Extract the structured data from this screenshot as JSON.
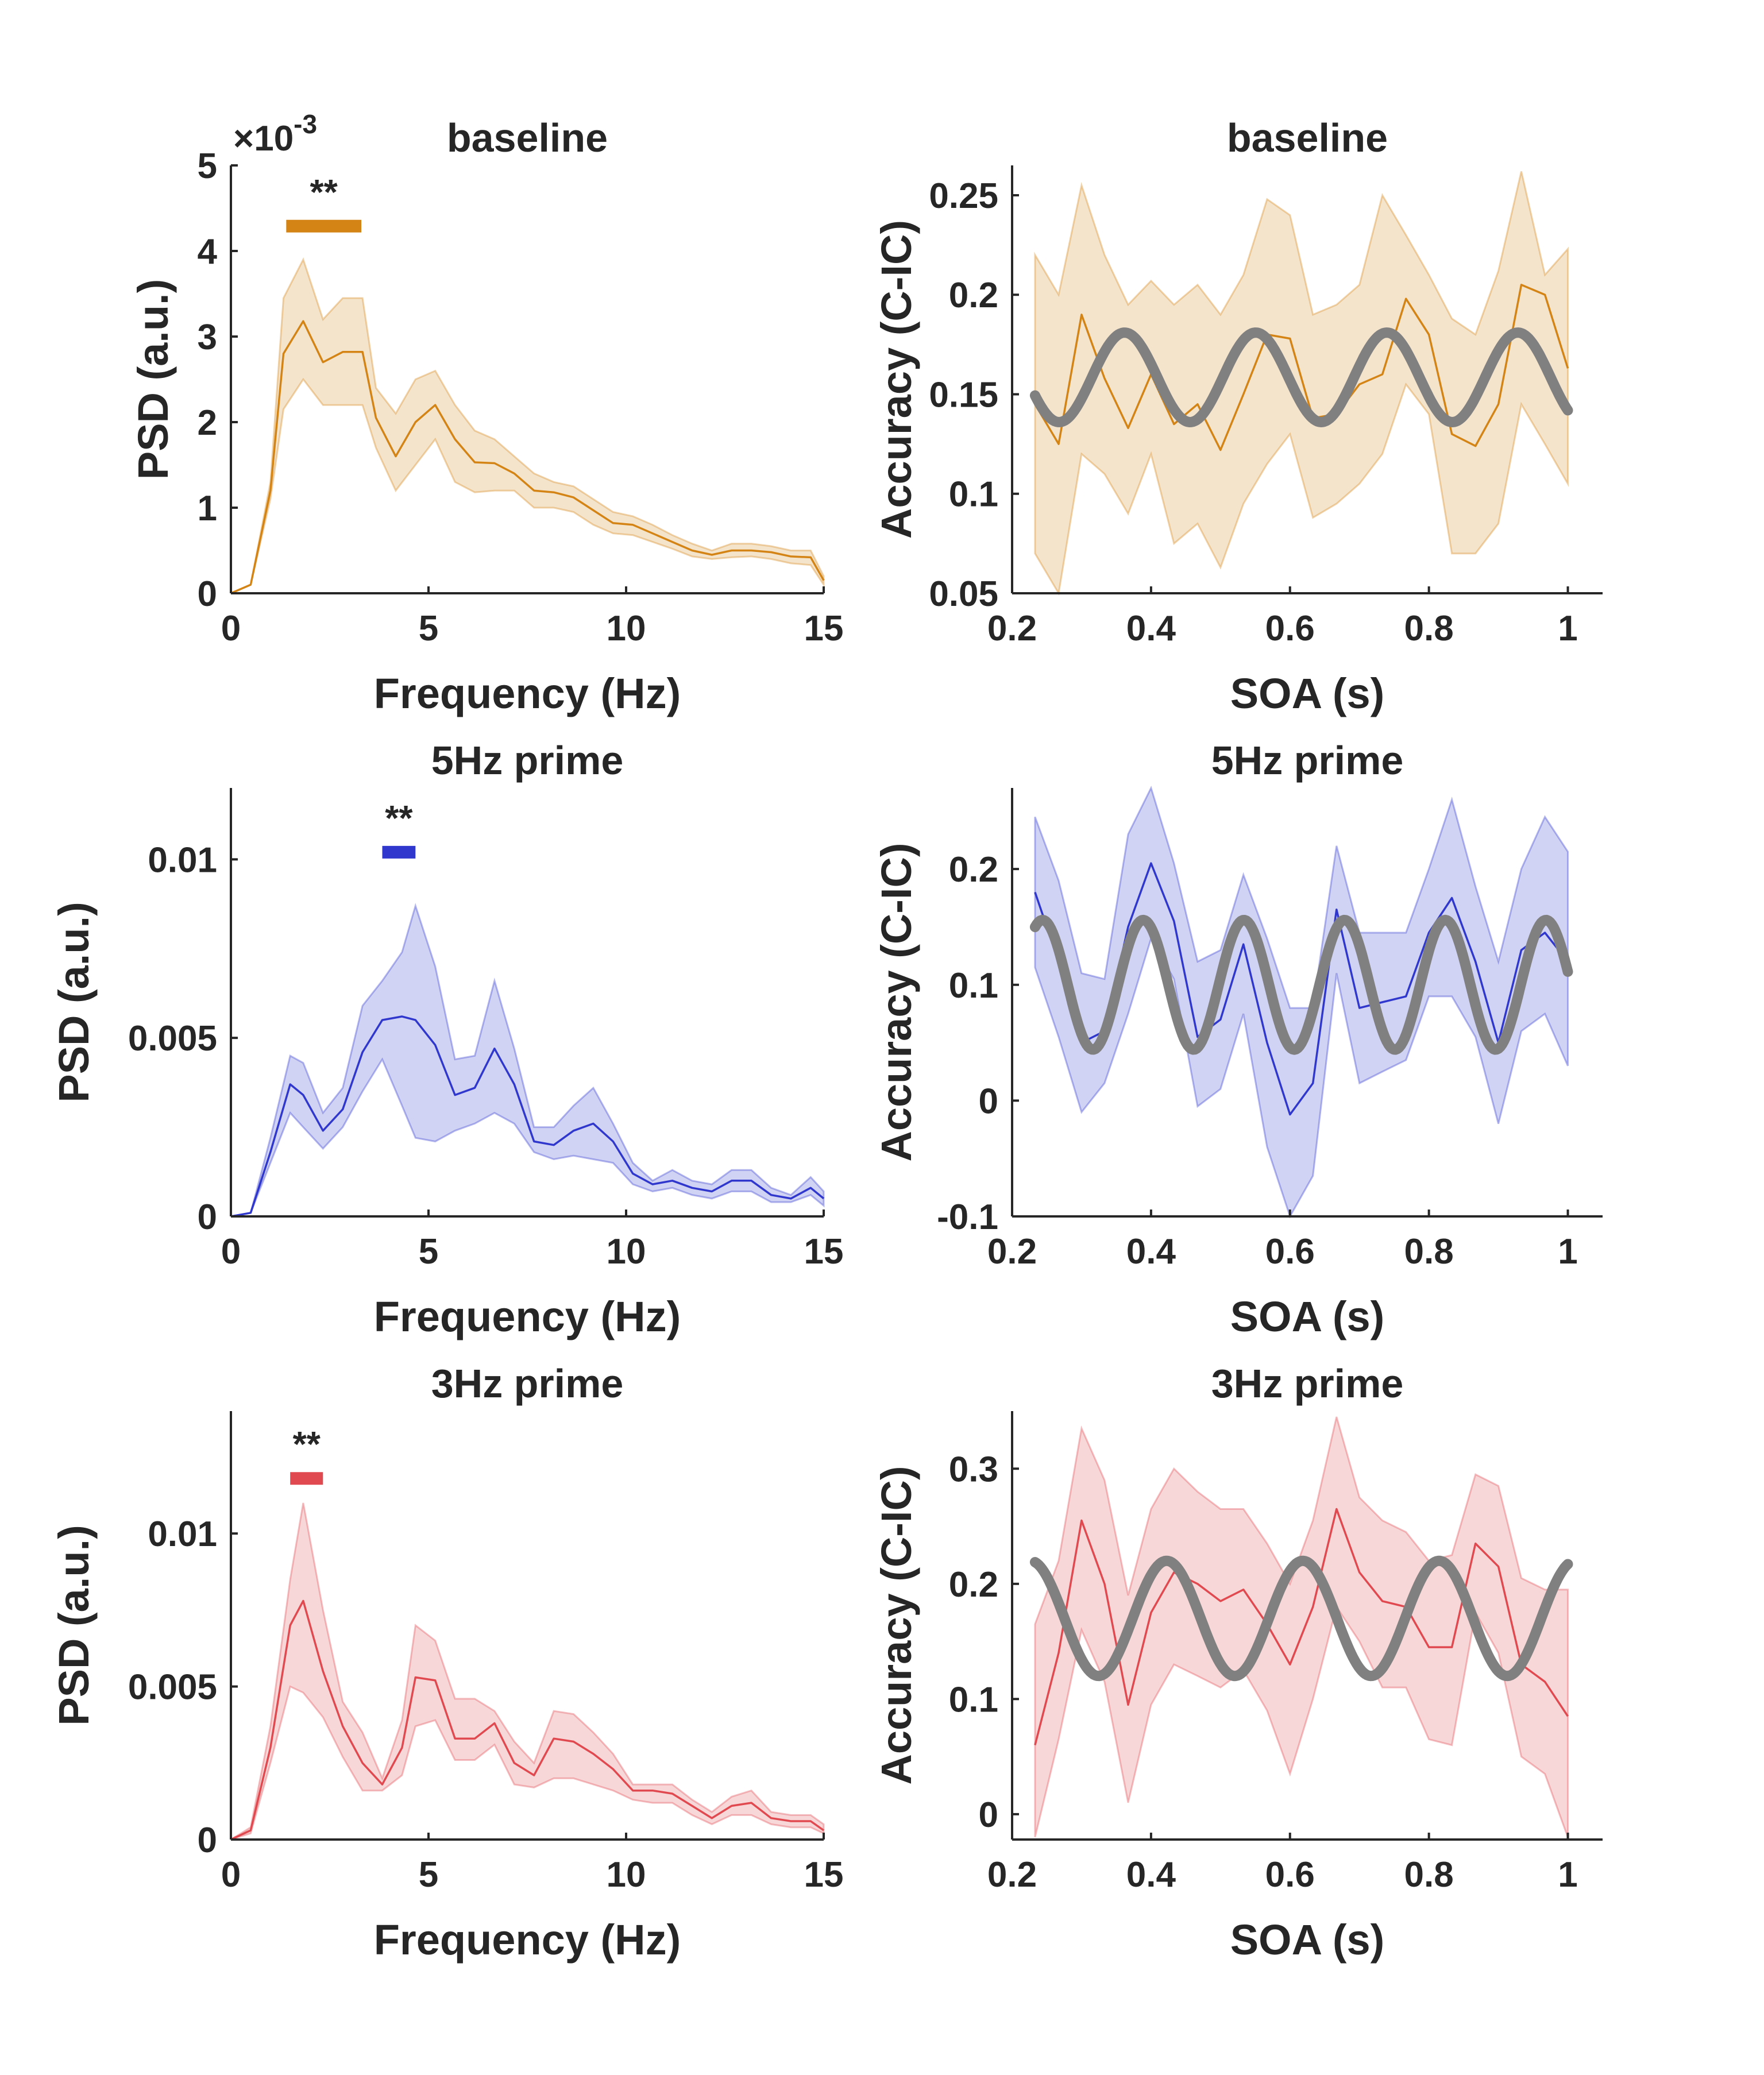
{
  "colors": {
    "baseline": "#D38415",
    "prime5": "#2F37CC",
    "prime3": "#E0494F",
    "fit": "#808080",
    "axis": "#262626"
  },
  "chart_data": [
    {
      "id": "psd-baseline",
      "type": "line",
      "title": "baseline",
      "xlabel": "Frequency (Hz)",
      "ylabel": "PSD (a.u.)",
      "exponent_label": "×10",
      "exponent_power": "-3",
      "xlim": [
        0,
        15
      ],
      "ylim": [
        0,
        0.005
      ],
      "xticks": [
        0,
        5,
        10,
        15
      ],
      "xticklabels": [
        "0",
        "5",
        "10",
        "15"
      ],
      "yticks": [
        0,
        0.001,
        0.002,
        0.003,
        0.004,
        0.005
      ],
      "yticklabels": [
        "0",
        "1",
        "2",
        "3",
        "4",
        "5"
      ],
      "color_key": "baseline",
      "series": [
        {
          "x": [
            0,
            0.5,
            1,
            1.33,
            1.83,
            2.33,
            2.83,
            3.33,
            3.67,
            4.17,
            4.67,
            5.17,
            5.67,
            6.17,
            6.67,
            7.17,
            7.67,
            8.17,
            8.67,
            9.17,
            9.67,
            10.17,
            10.67,
            11.17,
            11.67,
            12.17,
            12.67,
            13.17,
            13.67,
            14.17,
            14.67,
            15
          ],
          "mean": [
            0,
            0.0001,
            0.0012,
            0.0028,
            0.00318,
            0.0027,
            0.00282,
            0.00282,
            0.00205,
            0.0016,
            0.002,
            0.0022,
            0.0018,
            0.00153,
            0.00152,
            0.0014,
            0.0012,
            0.00118,
            0.00112,
            0.00097,
            0.00082,
            0.0008,
            0.0007,
            0.0006,
            0.0005,
            0.00045,
            0.0005,
            0.0005,
            0.00048,
            0.00043,
            0.00042,
            0.00015
          ],
          "upper": [
            0,
            0.0001,
            0.0013,
            0.00345,
            0.0039,
            0.0032,
            0.00345,
            0.00345,
            0.0024,
            0.0021,
            0.0025,
            0.0026,
            0.0022,
            0.0019,
            0.0018,
            0.0016,
            0.0014,
            0.0013,
            0.00125,
            0.0011,
            0.00095,
            0.0009,
            0.0008,
            0.00068,
            0.00058,
            0.0005,
            0.00058,
            0.00058,
            0.00055,
            0.0005,
            0.0005,
            0.0002
          ],
          "lower": [
            0,
            0.0001,
            0.0011,
            0.00215,
            0.0025,
            0.0022,
            0.0022,
            0.0022,
            0.0017,
            0.0012,
            0.0015,
            0.0018,
            0.0013,
            0.00118,
            0.0012,
            0.0012,
            0.001,
            0.001,
            0.00095,
            0.0008,
            0.0007,
            0.00068,
            0.0006,
            0.00052,
            0.00043,
            0.0004,
            0.00042,
            0.00043,
            0.0004,
            0.00035,
            0.00033,
            0.0001
          ]
        }
      ],
      "significance": {
        "label": "**",
        "x_start": 1.4,
        "x_end": 3.3,
        "y": 0.00429
      }
    },
    {
      "id": "acc-baseline",
      "type": "line",
      "title": "baseline",
      "xlabel": "SOA (s)",
      "ylabel": "Accuracy (C-IC)",
      "xlim": [
        0.2,
        1.05
      ],
      "ylim": [
        0.05,
        0.265
      ],
      "xticks": [
        0.2,
        0.4,
        0.6,
        0.8,
        1
      ],
      "xticklabels": [
        "0.2",
        "0.4",
        "0.6",
        "0.8",
        "1"
      ],
      "yticks": [
        0.05,
        0.1,
        0.15,
        0.2,
        0.25
      ],
      "yticklabels": [
        "0.05",
        "0.1",
        "0.15",
        "0.2",
        "0.25"
      ],
      "color_key": "baseline",
      "series": [
        {
          "x": [
            0.233,
            0.267,
            0.3,
            0.333,
            0.367,
            0.4,
            0.433,
            0.467,
            0.5,
            0.533,
            0.567,
            0.6,
            0.633,
            0.667,
            0.7,
            0.733,
            0.767,
            0.8,
            0.833,
            0.867,
            0.9,
            0.933,
            0.967,
            1
          ],
          "mean": [
            0.145,
            0.125,
            0.19,
            0.158,
            0.133,
            0.16,
            0.135,
            0.145,
            0.122,
            0.15,
            0.18,
            0.178,
            0.138,
            0.14,
            0.155,
            0.16,
            0.198,
            0.18,
            0.13,
            0.124,
            0.145,
            0.205,
            0.2,
            0.163
          ],
          "upper": [
            0.22,
            0.2,
            0.255,
            0.22,
            0.195,
            0.207,
            0.195,
            0.205,
            0.19,
            0.21,
            0.248,
            0.24,
            0.19,
            0.195,
            0.205,
            0.25,
            0.23,
            0.21,
            0.188,
            0.18,
            0.212,
            0.262,
            0.21,
            0.223
          ],
          "lower": [
            0.07,
            0.05,
            0.12,
            0.11,
            0.09,
            0.12,
            0.075,
            0.085,
            0.063,
            0.095,
            0.115,
            0.13,
            0.088,
            0.095,
            0.105,
            0.12,
            0.155,
            0.14,
            0.07,
            0.07,
            0.085,
            0.145,
            0.125,
            0.105
          ]
        }
      ],
      "fit": {
        "frequency_hz": 5.3,
        "mean": 0.1585,
        "amplitude": 0.0225,
        "phase_rad": -4.2,
        "x_start": 0.233,
        "x_end": 1
      }
    },
    {
      "id": "psd-5hz",
      "type": "line",
      "title": "5Hz prime",
      "xlabel": "Frequency (Hz)",
      "ylabel": "PSD (a.u.)",
      "xlim": [
        0,
        15
      ],
      "ylim": [
        0,
        0.012
      ],
      "xticks": [
        0,
        5,
        10,
        15
      ],
      "xticklabels": [
        "0",
        "5",
        "10",
        "15"
      ],
      "yticks": [
        0,
        0.005,
        0.01
      ],
      "yticklabels": [
        "0",
        "0.005",
        "0.01"
      ],
      "color_key": "prime5",
      "series": [
        {
          "x": [
            0,
            0.5,
            1,
            1.5,
            1.83,
            2.33,
            2.83,
            3.33,
            3.83,
            4.33,
            4.67,
            5.17,
            5.67,
            6.17,
            6.67,
            7.17,
            7.67,
            8.17,
            8.67,
            9.17,
            9.67,
            10.17,
            10.67,
            11.17,
            11.67,
            12.17,
            12.67,
            13.17,
            13.67,
            14.17,
            14.67,
            15
          ],
          "mean": [
            0,
            0.0001,
            0.0018,
            0.0037,
            0.0034,
            0.0024,
            0.003,
            0.0046,
            0.0055,
            0.0056,
            0.0055,
            0.0048,
            0.0034,
            0.0036,
            0.0047,
            0.0037,
            0.0021,
            0.002,
            0.0024,
            0.0026,
            0.0021,
            0.0012,
            0.0009,
            0.001,
            0.0008,
            0.0007,
            0.001,
            0.001,
            0.0006,
            0.0005,
            0.0008,
            0.0005
          ],
          "upper": [
            0,
            0.0001,
            0.0022,
            0.0045,
            0.0043,
            0.0029,
            0.0036,
            0.0059,
            0.0066,
            0.0074,
            0.0087,
            0.007,
            0.0044,
            0.0045,
            0.0066,
            0.0047,
            0.0025,
            0.0025,
            0.0031,
            0.0036,
            0.0026,
            0.0015,
            0.001,
            0.0013,
            0.001,
            0.0009,
            0.0013,
            0.0013,
            0.0008,
            0.0006,
            0.0011,
            0.0007
          ],
          "lower": [
            0,
            0.0001,
            0.0015,
            0.0029,
            0.0025,
            0.0019,
            0.0025,
            0.0035,
            0.0044,
            0.0031,
            0.0022,
            0.0021,
            0.0024,
            0.0026,
            0.0029,
            0.0026,
            0.0018,
            0.0016,
            0.0017,
            0.0016,
            0.0015,
            0.0009,
            0.0007,
            0.0008,
            0.0006,
            0.0005,
            0.0007,
            0.0007,
            0.0004,
            0.0004,
            0.0006,
            0.0003
          ]
        }
      ],
      "significance": {
        "label": "**",
        "x_start": 3.83,
        "x_end": 4.67,
        "y": 0.0102
      }
    },
    {
      "id": "acc-5hz",
      "type": "line",
      "title": "5Hz prime",
      "xlabel": "SOA (s)",
      "ylabel": "Accuracy (C-IC)",
      "xlim": [
        0.2,
        1.05
      ],
      "ylim": [
        -0.1,
        0.27
      ],
      "xticks": [
        0.2,
        0.4,
        0.6,
        0.8,
        1
      ],
      "xticklabels": [
        "0.2",
        "0.4",
        "0.6",
        "0.8",
        "1"
      ],
      "yticks": [
        -0.1,
        0,
        0.1,
        0.2
      ],
      "yticklabels": [
        "-0.1",
        "0",
        "0.1",
        "0.2"
      ],
      "color_key": "prime5",
      "series": [
        {
          "x": [
            0.233,
            0.267,
            0.3,
            0.333,
            0.367,
            0.4,
            0.433,
            0.467,
            0.5,
            0.533,
            0.567,
            0.6,
            0.633,
            0.667,
            0.7,
            0.733,
            0.767,
            0.8,
            0.833,
            0.867,
            0.9,
            0.933,
            0.967,
            1
          ],
          "mean": [
            0.18,
            0.12,
            0.05,
            0.06,
            0.15,
            0.205,
            0.155,
            0.055,
            0.07,
            0.135,
            0.05,
            -0.012,
            0.015,
            0.165,
            0.08,
            0.085,
            0.09,
            0.145,
            0.175,
            0.12,
            0.05,
            0.13,
            0.145,
            0.12
          ],
          "upper": [
            0.245,
            0.19,
            0.11,
            0.105,
            0.23,
            0.27,
            0.205,
            0.12,
            0.13,
            0.195,
            0.14,
            0.08,
            0.08,
            0.22,
            0.145,
            0.145,
            0.145,
            0.2,
            0.26,
            0.185,
            0.12,
            0.2,
            0.245,
            0.215
          ],
          "lower": [
            0.115,
            0.055,
            -0.01,
            0.015,
            0.075,
            0.14,
            0.105,
            -0.005,
            0.01,
            0.075,
            -0.04,
            -0.1,
            -0.065,
            0.11,
            0.015,
            0.025,
            0.035,
            0.09,
            0.09,
            0.055,
            -0.02,
            0.06,
            0.075,
            0.03
          ]
        }
      ],
      "fit": {
        "frequency_hz": 6.9,
        "mean": 0.1,
        "amplitude": 0.056,
        "phase_rad": -9.0,
        "x_start": 0.233,
        "x_end": 1
      }
    },
    {
      "id": "psd-3hz",
      "type": "line",
      "title": "3Hz prime",
      "xlabel": "Frequency (Hz)",
      "ylabel": "PSD (a.u.)",
      "xlim": [
        0,
        15
      ],
      "ylim": [
        0,
        0.014
      ],
      "xticks": [
        0,
        5,
        10,
        15
      ],
      "xticklabels": [
        "0",
        "5",
        "10",
        "15"
      ],
      "yticks": [
        0,
        0.005,
        0.01
      ],
      "yticklabels": [
        "0",
        "0.005",
        "0.01"
      ],
      "color_key": "prime3",
      "series": [
        {
          "x": [
            0,
            0.5,
            1,
            1.5,
            1.83,
            2.33,
            2.83,
            3.33,
            3.83,
            4.33,
            4.67,
            5.17,
            5.67,
            6.17,
            6.67,
            7.17,
            7.67,
            8.17,
            8.67,
            9.17,
            9.67,
            10.17,
            10.67,
            11.17,
            11.67,
            12.17,
            12.67,
            13.17,
            13.67,
            14.17,
            14.67,
            15
          ],
          "mean": [
            0,
            0.0003,
            0.003,
            0.007,
            0.0078,
            0.0055,
            0.0037,
            0.0025,
            0.0018,
            0.003,
            0.0053,
            0.0052,
            0.0033,
            0.0033,
            0.0038,
            0.0025,
            0.0021,
            0.0033,
            0.0032,
            0.0028,
            0.0023,
            0.0016,
            0.0016,
            0.0015,
            0.0011,
            0.0007,
            0.0011,
            0.0012,
            0.0007,
            0.0006,
            0.0006,
            0.0003
          ],
          "upper": [
            0,
            0.0004,
            0.0037,
            0.0085,
            0.011,
            0.0075,
            0.0045,
            0.0035,
            0.002,
            0.0039,
            0.007,
            0.0065,
            0.0046,
            0.0046,
            0.0042,
            0.0032,
            0.0025,
            0.0042,
            0.0041,
            0.0035,
            0.0028,
            0.0018,
            0.0018,
            0.0018,
            0.0013,
            0.0009,
            0.0014,
            0.0016,
            0.0009,
            0.0008,
            0.0008,
            0.0005
          ],
          "lower": [
            0,
            0.0002,
            0.0025,
            0.005,
            0.0048,
            0.004,
            0.0027,
            0.0016,
            0.0016,
            0.0021,
            0.0037,
            0.0039,
            0.0026,
            0.0026,
            0.0031,
            0.0018,
            0.0017,
            0.002,
            0.002,
            0.0018,
            0.0016,
            0.0013,
            0.0012,
            0.0012,
            0.0008,
            0.0005,
            0.0008,
            0.0008,
            0.0005,
            0.0004,
            0.0004,
            0.0002
          ]
        }
      ],
      "significance": {
        "label": "**",
        "x_start": 1.5,
        "x_end": 2.33,
        "y": 0.0118
      }
    },
    {
      "id": "acc-3hz",
      "type": "line",
      "title": "3Hz prime",
      "xlabel": "SOA (s)",
      "ylabel": "Accuracy (C-IC)",
      "xlim": [
        0.2,
        1.05
      ],
      "ylim": [
        -0.022,
        0.35
      ],
      "xticks": [
        0.2,
        0.4,
        0.6,
        0.8,
        1
      ],
      "xticklabels": [
        "0.2",
        "0.4",
        "0.6",
        "0.8",
        "1"
      ],
      "yticks": [
        0,
        0.1,
        0.2,
        0.3
      ],
      "yticklabels": [
        "0",
        "0.1",
        "0.2",
        "0.3"
      ],
      "color_key": "prime3",
      "series": [
        {
          "x": [
            0.233,
            0.267,
            0.3,
            0.333,
            0.367,
            0.4,
            0.433,
            0.467,
            0.5,
            0.533,
            0.567,
            0.6,
            0.633,
            0.667,
            0.7,
            0.733,
            0.767,
            0.8,
            0.833,
            0.867,
            0.9,
            0.933,
            0.967,
            1
          ],
          "mean": [
            0.06,
            0.14,
            0.255,
            0.2,
            0.095,
            0.175,
            0.21,
            0.2,
            0.185,
            0.195,
            0.165,
            0.13,
            0.18,
            0.265,
            0.21,
            0.185,
            0.18,
            0.145,
            0.145,
            0.235,
            0.215,
            0.13,
            0.115,
            0.085
          ],
          "upper": [
            0.165,
            0.22,
            0.335,
            0.29,
            0.19,
            0.265,
            0.3,
            0.28,
            0.265,
            0.265,
            0.235,
            0.2,
            0.255,
            0.345,
            0.275,
            0.255,
            0.245,
            0.22,
            0.225,
            0.295,
            0.285,
            0.205,
            0.195,
            0.195
          ],
          "lower": [
            -0.02,
            0.065,
            0.16,
            0.115,
            0.01,
            0.095,
            0.13,
            0.12,
            0.11,
            0.125,
            0.09,
            0.035,
            0.1,
            0.18,
            0.15,
            0.11,
            0.11,
            0.065,
            0.06,
            0.175,
            0.14,
            0.05,
            0.035,
            -0.02
          ]
        }
      ],
      "fit": {
        "frequency_hz": 5.1,
        "mean": 0.17,
        "amplitude": 0.05,
        "phase_rad": 0.6,
        "x_start": 0.233,
        "x_end": 1
      }
    }
  ]
}
